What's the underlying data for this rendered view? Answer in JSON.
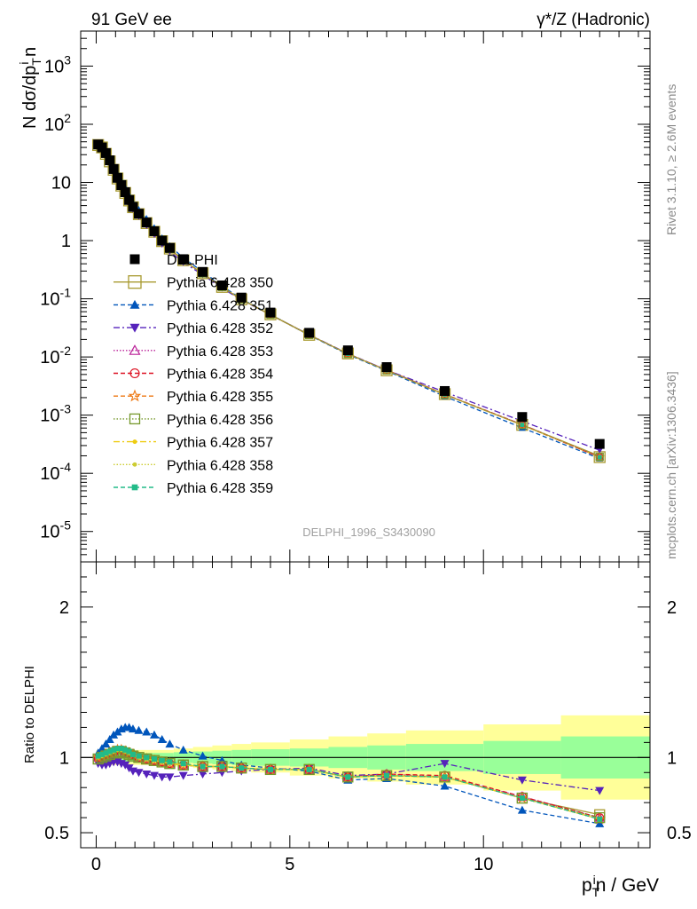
{
  "chart_data": [
    {
      "type": "scatter",
      "panel": "main",
      "title_left": "91 GeV ee",
      "title_right": "γ*/Z (Hadronic)",
      "ylabel": "N dσ/dp_T^i n",
      "yscale": "log",
      "ylim": [
        3e-06,
        4000
      ],
      "xlim": [
        -0.4,
        14.3
      ],
      "watermark": "DELPHI_1996_S3430090",
      "ytick_labels": [
        "10^-5",
        "10^-4",
        "10^-3",
        "10^-2",
        "10^-1",
        "1",
        "10",
        "10^2",
        "10^3"
      ],
      "x": [
        0.05,
        0.15,
        0.25,
        0.35,
        0.45,
        0.55,
        0.65,
        0.75,
        0.85,
        0.95,
        1.1,
        1.3,
        1.5,
        1.7,
        1.9,
        2.25,
        2.75,
        3.25,
        3.75,
        4.5,
        5.5,
        6.5,
        7.5,
        9.0,
        11.0,
        13.0
      ],
      "series": [
        {
          "name": "DELPHI",
          "values": [
            45,
            40,
            32,
            24,
            17,
            12,
            9.0,
            6.8,
            5.0,
            3.8,
            2.9,
            2.05,
            1.45,
            1.0,
            0.75,
            0.48,
            0.29,
            0.17,
            0.105,
            0.058,
            0.026,
            0.013,
            0.0067,
            0.0026,
            0.00093,
            0.00032
          ]
        },
        {
          "name": "Pythia 6.428 350",
          "values": [
            44,
            40,
            31,
            23,
            16.5,
            11.7,
            8.8,
            6.6,
            4.9,
            3.75,
            2.85,
            2.0,
            1.42,
            0.98,
            0.73,
            0.46,
            0.275,
            0.16,
            0.098,
            0.054,
            0.024,
            0.0115,
            0.0059,
            0.0023,
            0.00068,
            0.00019
          ]
        }
      ],
      "legend": [
        "DELPHI",
        "Pythia 6.428 350",
        "Pythia 6.428 351",
        "Pythia 6.428 352",
        "Pythia 6.428 353",
        "Pythia 6.428 354",
        "Pythia 6.428 355",
        "Pythia 6.428 356",
        "Pythia 6.428 357",
        "Pythia 6.428 358",
        "Pythia 6.428 359"
      ],
      "colors": [
        "#000000",
        "#a89a30",
        "#0055bb",
        "#5522bb",
        "#bb2299",
        "#dd1122",
        "#ee7711",
        "#77992c",
        "#eecc11",
        "#cccc33",
        "#22bb88"
      ]
    },
    {
      "type": "line",
      "panel": "ratio",
      "ylabel": "Ratio to DELPHI",
      "xlabel": "p_T^i n / GeV",
      "ylim": [
        0.4,
        2.3
      ],
      "xlim": [
        -0.4,
        14.3
      ],
      "xtick_labels": [
        "0",
        "5",
        "10"
      ],
      "xticks": [
        0,
        5,
        10
      ],
      "ytick_labels": [
        "0.5",
        "1",
        "2"
      ],
      "yticks": [
        0.5,
        1,
        2
      ],
      "band_edges": [
        0,
        0.5,
        1,
        1.5,
        2,
        2.5,
        3,
        3.5,
        4,
        5,
        6,
        7,
        8,
        10,
        12,
        14.3
      ],
      "band_inner": [
        0.03,
        0.03,
        0.03,
        0.03,
        0.035,
        0.04,
        0.045,
        0.05,
        0.055,
        0.06,
        0.07,
        0.08,
        0.09,
        0.11,
        0.14,
        0.17
      ],
      "band_outer": [
        0.05,
        0.05,
        0.05,
        0.05,
        0.06,
        0.07,
        0.08,
        0.09,
        0.1,
        0.12,
        0.14,
        0.16,
        0.18,
        0.22,
        0.28,
        0.34
      ],
      "x": [
        0.05,
        0.15,
        0.25,
        0.35,
        0.45,
        0.55,
        0.65,
        0.75,
        0.85,
        0.95,
        1.1,
        1.3,
        1.5,
        1.7,
        1.9,
        2.25,
        2.75,
        3.25,
        3.75,
        4.5,
        5.5,
        6.5,
        7.5,
        9.0,
        11.0,
        13.0
      ],
      "series": [
        {
          "name": "Pythia 6.428 350",
          "values": [
            0.99,
            1.0,
            1.01,
            1.02,
            1.03,
            1.04,
            1.03,
            1.03,
            1.02,
            1.01,
            1.0,
            0.99,
            0.98,
            0.97,
            0.96,
            0.95,
            0.94,
            0.94,
            0.93,
            0.92,
            0.92,
            0.87,
            0.88,
            0.87,
            0.73,
            0.62
          ]
        },
        {
          "name": "Pythia 6.428 351",
          "values": [
            1.03,
            1.06,
            1.09,
            1.12,
            1.15,
            1.17,
            1.19,
            1.2,
            1.2,
            1.19,
            1.18,
            1.17,
            1.15,
            1.12,
            1.09,
            1.05,
            1.01,
            0.98,
            0.95,
            0.93,
            0.91,
            0.85,
            0.86,
            0.81,
            0.65,
            0.56
          ]
        },
        {
          "name": "Pythia 6.428 352",
          "values": [
            0.96,
            0.95,
            0.95,
            0.96,
            0.97,
            0.97,
            0.96,
            0.95,
            0.93,
            0.91,
            0.9,
            0.89,
            0.88,
            0.87,
            0.87,
            0.88,
            0.89,
            0.9,
            0.91,
            0.92,
            0.93,
            0.88,
            0.89,
            0.96,
            0.85,
            0.78
          ]
        },
        {
          "name": "Pythia 6.428 353",
          "values": [
            1.0,
            1.01,
            1.02,
            1.03,
            1.04,
            1.05,
            1.05,
            1.04,
            1.03,
            1.02,
            1.0,
            0.99,
            0.98,
            0.97,
            0.96,
            0.95,
            0.94,
            0.94,
            0.93,
            0.92,
            0.92,
            0.87,
            0.89,
            0.87,
            0.74,
            0.6
          ]
        },
        {
          "name": "Pythia 6.428 354",
          "values": [
            1.0,
            1.01,
            1.02,
            1.03,
            1.04,
            1.05,
            1.05,
            1.04,
            1.03,
            1.02,
            1.0,
            0.99,
            0.98,
            0.97,
            0.96,
            0.95,
            0.94,
            0.94,
            0.93,
            0.92,
            0.92,
            0.87,
            0.89,
            0.88,
            0.74,
            0.6
          ]
        },
        {
          "name": "Pythia 6.428 355",
          "values": [
            1.0,
            1.01,
            1.02,
            1.03,
            1.04,
            1.05,
            1.05,
            1.04,
            1.03,
            1.02,
            1.0,
            0.99,
            0.98,
            0.97,
            0.96,
            0.95,
            0.94,
            0.94,
            0.93,
            0.92,
            0.92,
            0.87,
            0.88,
            0.87,
            0.73,
            0.59
          ]
        },
        {
          "name": "Pythia 6.428 356",
          "values": [
            0.99,
            1.0,
            1.01,
            1.02,
            1.03,
            1.04,
            1.04,
            1.03,
            1.02,
            1.01,
            1.0,
            0.99,
            0.98,
            0.97,
            0.96,
            0.95,
            0.94,
            0.94,
            0.93,
            0.92,
            0.92,
            0.87,
            0.88,
            0.87,
            0.73,
            0.6
          ]
        },
        {
          "name": "Pythia 6.428 357",
          "values": [
            1.0,
            1.01,
            1.02,
            1.03,
            1.04,
            1.05,
            1.05,
            1.04,
            1.03,
            1.02,
            1.0,
            0.99,
            0.98,
            0.97,
            0.96,
            0.95,
            0.94,
            0.94,
            0.93,
            0.92,
            0.92,
            0.87,
            0.88,
            0.87,
            0.73,
            0.59
          ]
        },
        {
          "name": "Pythia 6.428 358",
          "values": [
            1.0,
            1.01,
            1.02,
            1.03,
            1.04,
            1.05,
            1.05,
            1.04,
            1.03,
            1.02,
            1.0,
            0.99,
            0.98,
            0.97,
            0.96,
            0.95,
            0.94,
            0.94,
            0.93,
            0.92,
            0.92,
            0.87,
            0.88,
            0.87,
            0.73,
            0.59
          ]
        },
        {
          "name": "Pythia 6.428 359",
          "values": [
            1.01,
            1.02,
            1.03,
            1.04,
            1.05,
            1.06,
            1.06,
            1.05,
            1.04,
            1.02,
            1.01,
            1.0,
            0.99,
            0.98,
            0.97,
            0.96,
            0.94,
            0.94,
            0.93,
            0.92,
            0.92,
            0.87,
            0.88,
            0.87,
            0.73,
            0.59
          ]
        }
      ]
    }
  ],
  "side_labels": {
    "rivet": "Rivet 3.1.10, ≥ 2.6M events",
    "mcplots": "mcplots.cern.ch [arXiv:1306.3436]"
  }
}
